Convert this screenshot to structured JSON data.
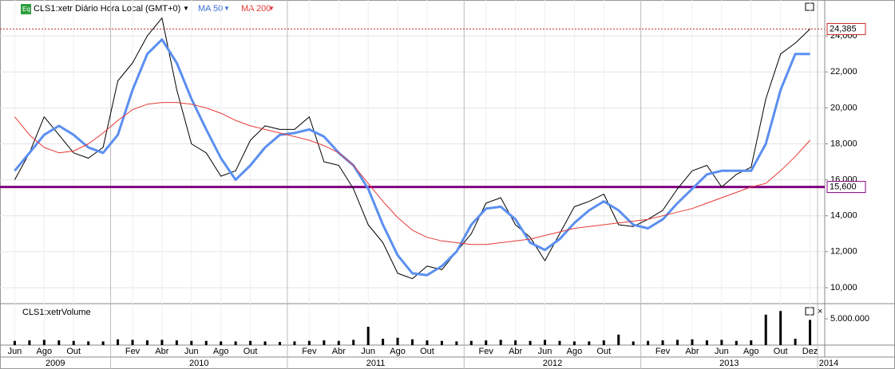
{
  "chart_data": {
    "type": "line",
    "title": "CLS1:xetr Diário Hora Local (GMT+0)",
    "volume_title": "CLS1:xetrVolume",
    "x": [
      "2009-06",
      "2009-07",
      "2009-08",
      "2009-09",
      "2009-10",
      "2009-11",
      "2009-12",
      "2010-01",
      "2010-02",
      "2010-03",
      "2010-04",
      "2010-05",
      "2010-06",
      "2010-07",
      "2010-08",
      "2010-09",
      "2010-10",
      "2010-11",
      "2010-12",
      "2011-01",
      "2011-02",
      "2011-03",
      "2011-04",
      "2011-05",
      "2011-06",
      "2011-07",
      "2011-08",
      "2011-09",
      "2011-10",
      "2011-11",
      "2011-12",
      "2012-01",
      "2012-02",
      "2012-03",
      "2012-04",
      "2012-05",
      "2012-06",
      "2012-07",
      "2012-08",
      "2012-09",
      "2012-10",
      "2012-11",
      "2012-12",
      "2013-01",
      "2013-02",
      "2013-03",
      "2013-04",
      "2013-05",
      "2013-06",
      "2013-07",
      "2013-08",
      "2013-09",
      "2013-10",
      "2013-11",
      "2013-12"
    ],
    "series": [
      {
        "name": "CLS1:xetr",
        "color": "#000000",
        "values": [
          16000,
          17500,
          19500,
          18500,
          17500,
          17200,
          17800,
          21500,
          22500,
          24000,
          25000,
          21000,
          18000,
          17500,
          16200,
          16500,
          18200,
          19000,
          18800,
          18800,
          19500,
          17000,
          16800,
          15500,
          13500,
          12500,
          10800,
          10500,
          11200,
          11000,
          12000,
          13000,
          14700,
          15000,
          13500,
          12800,
          11500,
          13000,
          14500,
          14800,
          15200,
          13500,
          13400,
          13800,
          14300,
          15500,
          16500,
          16800,
          15600,
          16300,
          16700,
          20500,
          23000,
          23600,
          24385
        ]
      },
      {
        "name": "MA 50",
        "color": "#5b8ff0",
        "values": [
          16500,
          17500,
          18500,
          19000,
          18500,
          17800,
          17500,
          18500,
          21000,
          23000,
          23800,
          22500,
          20500,
          18800,
          17200,
          16000,
          16800,
          17800,
          18500,
          18600,
          18800,
          18400,
          17500,
          16800,
          15500,
          13500,
          11800,
          10800,
          10700,
          11200,
          12000,
          13500,
          14400,
          14500,
          13800,
          12500,
          12100,
          12700,
          13600,
          14300,
          14800,
          14300,
          13500,
          13300,
          13800,
          14700,
          15500,
          16300,
          16500,
          16500,
          16500,
          18000,
          21000,
          23000,
          23000
        ]
      },
      {
        "name": "MA 200",
        "color": "#e53935",
        "values": [
          19500,
          18500,
          17800,
          17500,
          17600,
          18000,
          18600,
          19300,
          19900,
          20200,
          20300,
          20300,
          20200,
          20000,
          19700,
          19300,
          19000,
          18800,
          18600,
          18400,
          18200,
          17900,
          17500,
          16800,
          15800,
          14800,
          13900,
          13200,
          12800,
          12600,
          12500,
          12400,
          12400,
          12500,
          12600,
          12700,
          12900,
          13100,
          13300,
          13400,
          13500,
          13600,
          13700,
          13800,
          14000,
          14200,
          14400,
          14700,
          15000,
          15300,
          15600,
          15800,
          16500,
          17300,
          18200
        ]
      }
    ],
    "volume": [
      800000,
      900000,
      1000000,
      900000,
      800000,
      700000,
      700000,
      1100000,
      1000000,
      900000,
      1000000,
      900000,
      800000,
      800000,
      700000,
      700000,
      800000,
      700000,
      600000,
      700000,
      800000,
      900000,
      800000,
      1000000,
      3500000,
      1200000,
      1400000,
      1100000,
      900000,
      800000,
      700000,
      800000,
      900000,
      1000000,
      900000,
      800000,
      1000000,
      800000,
      700000,
      700000,
      900000,
      2000000,
      700000,
      800000,
      900000,
      1000000,
      1100000,
      900000,
      1000000,
      800000,
      900000,
      5800000,
      6500000,
      1200000,
      4800000
    ],
    "xlim": [
      "2009-05",
      "2014-01"
    ],
    "ylim": [
      9111,
      26000
    ],
    "yticks": [
      {
        "value": 10000,
        "label": "10,000"
      },
      {
        "value": 12000,
        "label": "12,000"
      },
      {
        "value": 14000,
        "label": "14,000"
      },
      {
        "value": 16000,
        "label": "16,000"
      },
      {
        "value": 18000,
        "label": "18,000"
      },
      {
        "value": 20000,
        "label": "20,000"
      },
      {
        "value": 22000,
        "label": "22,000"
      },
      {
        "value": 24000,
        "label": "24,000"
      }
    ],
    "volume_ylim": [
      0,
      7600000
    ],
    "volume_yticks": [
      {
        "value": 5000000,
        "label": "5.000.000"
      }
    ],
    "lines": [
      {
        "value": 24385,
        "label": "24,385",
        "color": "#c62828"
      },
      {
        "value": 15600,
        "label": "15,600",
        "color": "#800080"
      }
    ],
    "xticks": [
      {
        "value": "2009-06",
        "label": "Jun"
      },
      {
        "value": "2009-08",
        "label": "Ago"
      },
      {
        "value": "2009-10",
        "label": "Out"
      },
      {
        "value": "2010-02",
        "label": "Fev"
      },
      {
        "value": "2010-04",
        "label": "Abr"
      },
      {
        "value": "2010-06",
        "label": "Jun"
      },
      {
        "value": "2010-08",
        "label": "Ago"
      },
      {
        "value": "2010-10",
        "label": "Out"
      },
      {
        "value": "2011-02",
        "label": "Fev"
      },
      {
        "value": "2011-04",
        "label": "Abr"
      },
      {
        "value": "2011-06",
        "label": "Jun"
      },
      {
        "value": "2011-08",
        "label": "Ago"
      },
      {
        "value": "2011-10",
        "label": "Out"
      },
      {
        "value": "2012-02",
        "label": "Fev"
      },
      {
        "value": "2012-04",
        "label": "Abr"
      },
      {
        "value": "2012-06",
        "label": "Jun"
      },
      {
        "value": "2012-08",
        "label": "Ago"
      },
      {
        "value": "2012-10",
        "label": "Out"
      },
      {
        "value": "2013-02",
        "label": "Fev"
      },
      {
        "value": "2013-04",
        "label": "Abr"
      },
      {
        "value": "2013-06",
        "label": "Jun"
      },
      {
        "value": "2013-08",
        "label": "Ago"
      },
      {
        "value": "2013-10",
        "label": "Out"
      },
      {
        "value": "2013-12",
        "label": "Dez"
      }
    ],
    "years": [
      "2009",
      "2010",
      "2011",
      "2012",
      "2013",
      "2014"
    ],
    "grid": true
  }
}
